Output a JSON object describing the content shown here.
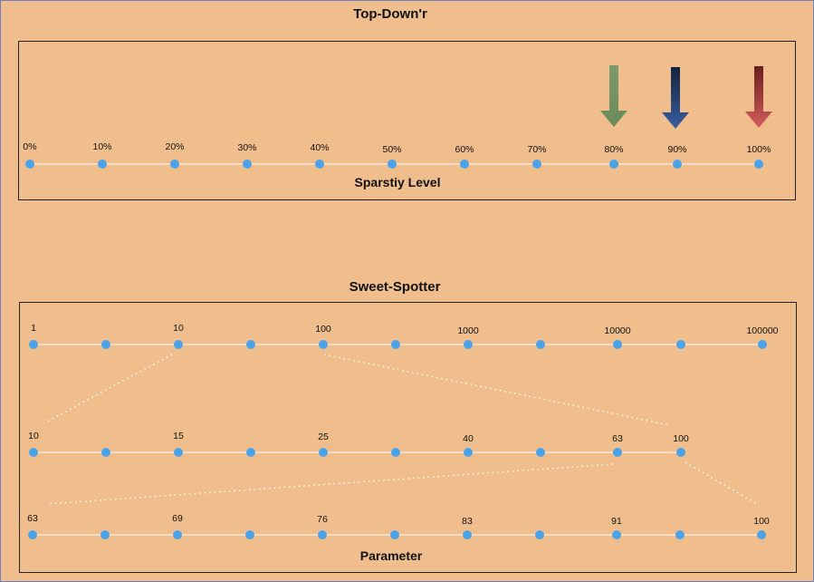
{
  "top": {
    "title": "Top-Down'r",
    "axis_label": "Sparstiy Level",
    "ticks": [
      "0%",
      "10%",
      "20%",
      "30%",
      "40%",
      "50%",
      "60%",
      "70%",
      "80%",
      "90%",
      "100%"
    ],
    "arrows": [
      {
        "at": "80%",
        "color_top": "#7b9b6b",
        "color_bottom": "#6a8a5a"
      },
      {
        "at": "90%",
        "color_top": "#14233f",
        "color_bottom": "#3a5ea0"
      },
      {
        "at": "100%",
        "color_top": "#6b1e1e",
        "color_bottom": "#d25c5c"
      }
    ]
  },
  "bottom": {
    "title": "Sweet-Spotter",
    "axis_label": "Parameter",
    "rows": [
      {
        "labels": [
          "1",
          "",
          "10",
          "",
          "100",
          "",
          "1000",
          "",
          "10000",
          "",
          "100000"
        ]
      },
      {
        "labels": [
          "10",
          "",
          "15",
          "",
          "25",
          "",
          "40",
          "",
          "63",
          "100"
        ]
      },
      {
        "labels": [
          "63",
          "",
          "69",
          "",
          "76",
          "",
          "83",
          "",
          "91",
          "",
          "100"
        ]
      }
    ]
  },
  "colors": {
    "background": "#f0be8c",
    "dot": "#4aa3e8",
    "line": "#ffffff"
  }
}
